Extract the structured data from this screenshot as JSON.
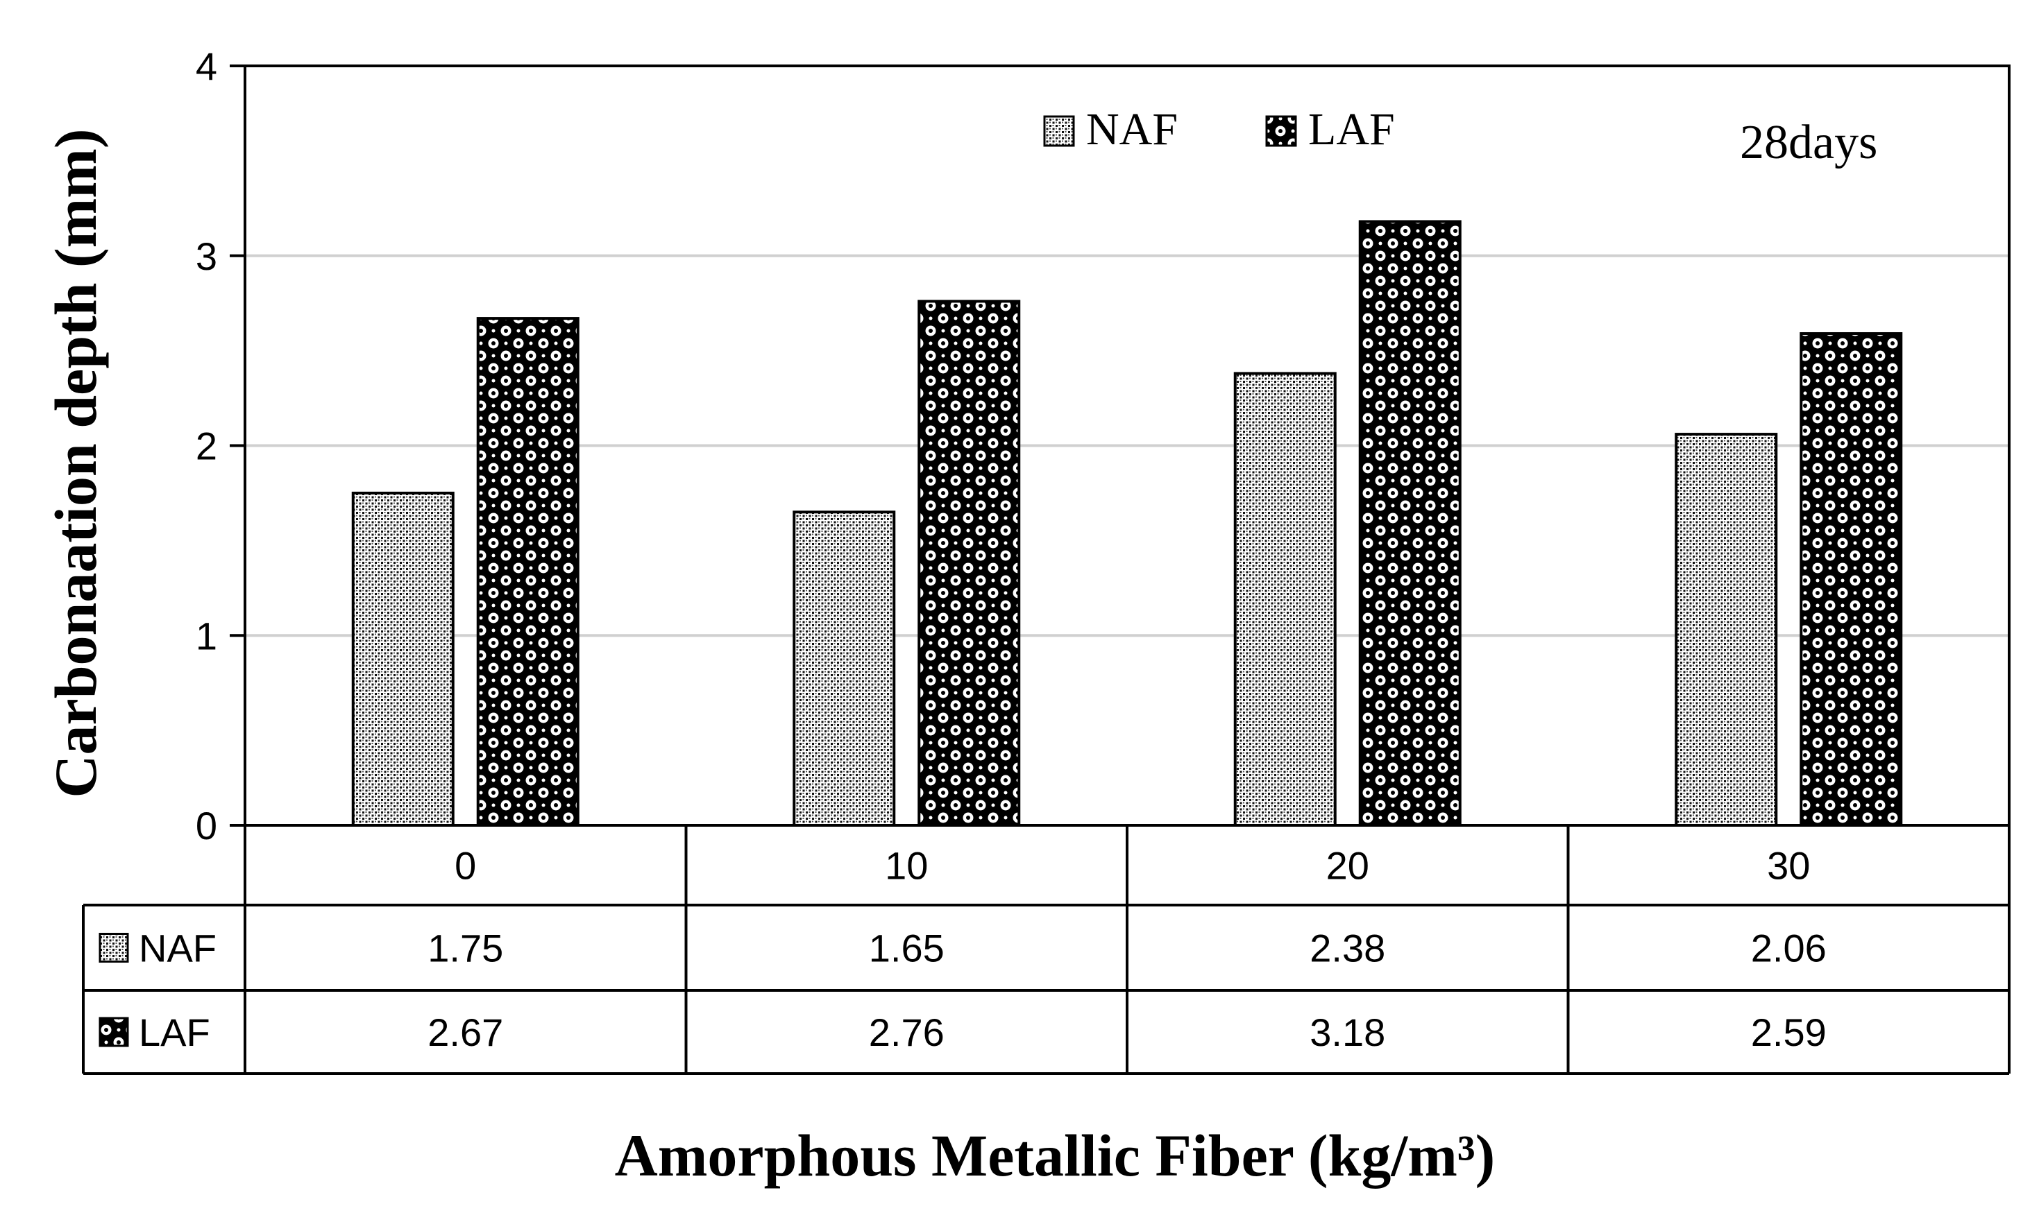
{
  "chart_data": {
    "type": "bar",
    "title": "",
    "annotation": "28days",
    "xlabel": "Amorphous Metallic Fiber (kg/m³)",
    "ylabel": "Carbonaation depth (mm)",
    "ylim": [
      0,
      4
    ],
    "yticks": [
      "0",
      "1",
      "2",
      "3",
      "4"
    ],
    "grid": true,
    "legend_position": "top-center",
    "categories": [
      "0",
      "10",
      "20",
      "30"
    ],
    "series": [
      {
        "name": "NAF",
        "values": [
          1.75,
          1.65,
          2.38,
          2.06
        ],
        "value_labels": [
          "1.75",
          "1.65",
          "2.38",
          "2.06"
        ]
      },
      {
        "name": "LAF",
        "values": [
          2.67,
          2.76,
          3.18,
          2.59
        ],
        "value_labels": [
          "2.67",
          "2.76",
          "3.18",
          "2.59"
        ]
      }
    ],
    "data_table": true
  }
}
